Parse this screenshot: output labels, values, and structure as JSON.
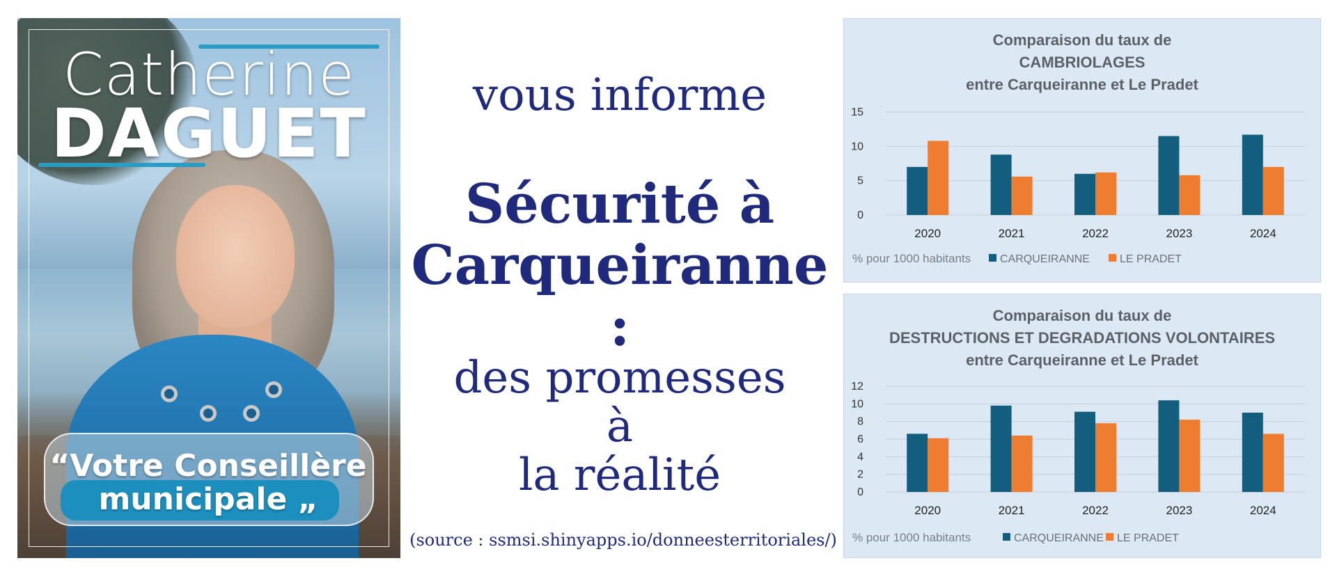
{
  "poster": {
    "first_name": "Catherine",
    "last_name": "DAGUET",
    "tagline_line1": "“Votre Conseillère",
    "tagline_line2": "municipale „"
  },
  "center": {
    "intro": "vous informe",
    "headline_line1": "Sécurité à",
    "headline_line2": "Carqueiranne :",
    "promise_line1": "des promesses",
    "promise_line2": "à",
    "promise_line3": "la réalité",
    "source": "(source : ssmsi.shinyapps.io/donneesterritoriales/)"
  },
  "colors": {
    "series1": "#135d7e",
    "series2": "#ef7d31",
    "text_blue": "#1f2a7c"
  },
  "chart_data": [
    {
      "type": "bar",
      "title": [
        "Comparaison du taux de",
        "CAMBRIOLAGES",
        "entre Carqueiranne et Le Pradet"
      ],
      "categories": [
        "2020",
        "2021",
        "2022",
        "2023",
        "2024"
      ],
      "series": [
        {
          "name": "CARQUEIRANNE",
          "values": [
            7.0,
            8.8,
            6.0,
            11.5,
            11.7
          ]
        },
        {
          "name": "LE PRADET",
          "values": [
            10.8,
            5.6,
            6.2,
            5.8,
            7.0
          ]
        }
      ],
      "ylim": [
        0,
        15
      ],
      "yticks": [
        0,
        5,
        10,
        15
      ],
      "unit_note": "% pour 1000 habitants",
      "grid": true,
      "legend": "bottom"
    },
    {
      "type": "bar",
      "title": [
        "Comparaison du taux de",
        "DESTRUCTIONS ET DEGRADATIONS VOLONTAIRES",
        "entre Carqueiranne et Le Pradet"
      ],
      "categories": [
        "2020",
        "2021",
        "2022",
        "2023",
        "2024"
      ],
      "series": [
        {
          "name": "CARQUEIRANNE",
          "values": [
            6.6,
            9.8,
            9.1,
            10.4,
            9.0
          ]
        },
        {
          "name": "LE PRADET",
          "values": [
            6.1,
            6.4,
            7.8,
            8.2,
            6.6
          ]
        }
      ],
      "ylim": [
        0,
        12
      ],
      "yticks": [
        0,
        2,
        4,
        6,
        8,
        10,
        12
      ],
      "unit_note": "% pour 1000 habitants",
      "grid": true,
      "legend": "bottom"
    }
  ]
}
